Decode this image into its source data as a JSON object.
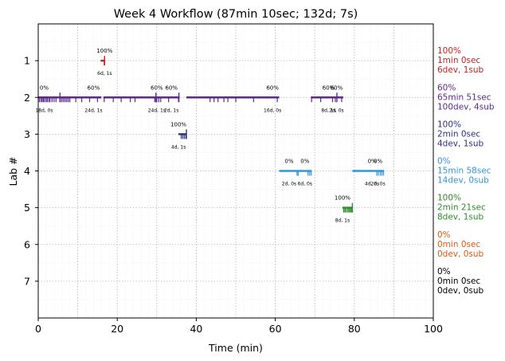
{
  "chart_data": {
    "type": "timeline",
    "title": "Week 4 Workflow (87min 10sec; 132d; 7s)",
    "xlabel": "Time (min)",
    "ylabel": "Lab #",
    "xlim": [
      0,
      100
    ],
    "ylim": [
      8,
      0
    ],
    "xticks": [
      0,
      20,
      40,
      60,
      80,
      100
    ],
    "yticks": [
      1,
      2,
      3,
      4,
      5,
      6,
      7
    ],
    "grid": true,
    "labs": [
      {
        "lab": 1,
        "color": "#cc1f1f",
        "summary": [
          "100%",
          "1min 0sec",
          "6dev, 1sub"
        ],
        "segments": [
          [
            15.8,
            16.9
          ]
        ],
        "dev_ticks": [
          16.7
        ],
        "sub_ticks": [
          16.8
        ],
        "annotations": [
          {
            "x": 16.8,
            "pct": "100%",
            "count": "6d, 1s"
          }
        ]
      },
      {
        "lab": 2,
        "color": "#5b2a8c",
        "summary": [
          "60%",
          "65min 51sec",
          "100dev, 4sub"
        ],
        "segments": [
          [
            0,
            16
          ],
          [
            16.5,
            35.8
          ],
          [
            37.5,
            61
          ],
          [
            69,
            77.2
          ]
        ],
        "dev_ticks": [
          0.3,
          0.7,
          1.0,
          1.3,
          1.6,
          2.0,
          2.3,
          2.7,
          3.0,
          3.5,
          4.0,
          4.5,
          5.6,
          6.0,
          6.4,
          6.8,
          7.2,
          7.6,
          8.0,
          9.5,
          11,
          13,
          15,
          16.7,
          19,
          21,
          23.3,
          24.5,
          29.5,
          30,
          30.5,
          31,
          33,
          35.5,
          43.5,
          44.5,
          45.5,
          47,
          48,
          50,
          54.5,
          60.5,
          69.2,
          71.5,
          74.5,
          75.2,
          76.8
        ],
        "sub_ticks": [
          5.5,
          29.8,
          35.6,
          75.6
        ],
        "annotations": [
          {
            "x": 1.5,
            "pct": "0%",
            "count": "18d, 0s"
          },
          {
            "x": 14,
            "pct": "60%",
            "count": "24d, 1s"
          },
          {
            "x": 30,
            "pct": "60%",
            "count": "24d, 1s"
          },
          {
            "x": 33.7,
            "pct": "60%",
            "count": "2d, 1s"
          },
          {
            "x": 59.3,
            "pct": "60%",
            "count": "16d, 0s"
          },
          {
            "x": 73.5,
            "pct": "60%",
            "count": "8d, 1s"
          },
          {
            "x": 75.5,
            "pct": "60%",
            "count": "2d, 0s"
          }
        ]
      },
      {
        "lab": 3,
        "color": "#2b2f86",
        "summary": [
          "100%",
          "2min 0sec",
          "4dev, 1sub"
        ],
        "segments": [
          [
            35.5,
            37.5
          ]
        ],
        "dev_ticks": [
          36.2,
          36.6,
          37.0,
          37.4
        ],
        "sub_ticks": [
          37.5
        ],
        "annotations": [
          {
            "x": 35.5,
            "pct": "100%",
            "count": "4d, 1s"
          }
        ]
      },
      {
        "lab": 4,
        "color": "#2f96e0",
        "summary": [
          "0%",
          "15min 58sec",
          "14dev, 0sub"
        ],
        "segments": [
          [
            61,
            69.2
          ],
          [
            79.5,
            87.5
          ]
        ],
        "dev_ticks": [
          65.5,
          65.8,
          68.3,
          68.7,
          69.1,
          85.7,
          86.1,
          86.6,
          87.0,
          87.4
        ],
        "sub_ticks": [],
        "annotations": [
          {
            "x": 63.5,
            "pct": "0%",
            "count": "2d, 0s"
          },
          {
            "x": 67.5,
            "pct": "0%",
            "count": "6d, 0s"
          },
          {
            "x": 84.5,
            "pct": "0%",
            "count": "4d, 0s"
          },
          {
            "x": 86,
            "pct": "0%",
            "count": "2d, 0s"
          }
        ]
      },
      {
        "lab": 5,
        "color": "#2e8b2e",
        "summary": [
          "100%",
          "2min 21sec",
          "8dev, 1sub"
        ],
        "segments": [
          [
            77,
            79.5
          ]
        ],
        "dev_ticks": [
          77.3,
          77.6,
          77.9,
          78.3,
          78.6,
          78.9,
          79.2,
          79.4
        ],
        "sub_ticks": [
          79.5
        ],
        "annotations": [
          {
            "x": 77,
            "pct": "100%",
            "count": "8d, 1s"
          }
        ]
      },
      {
        "lab": 6,
        "color": "#e05a12",
        "summary": [
          "0%",
          "0min 0sec",
          "0dev, 0sub"
        ],
        "segments": [],
        "dev_ticks": [],
        "sub_ticks": [],
        "annotations": []
      },
      {
        "lab": 7,
        "color": "#000000",
        "summary": [
          "0%",
          "0min 0sec",
          "0dev, 0sub"
        ],
        "segments": [],
        "dev_ticks": [],
        "sub_ticks": [],
        "annotations": []
      }
    ]
  }
}
